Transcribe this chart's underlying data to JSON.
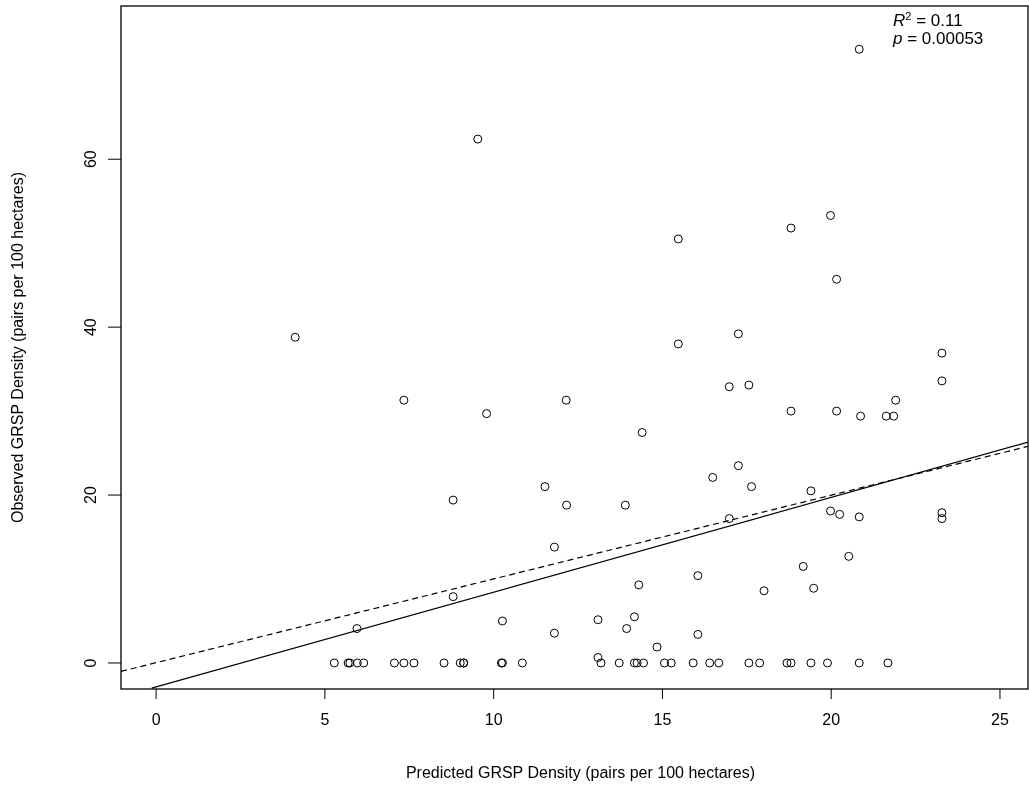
{
  "chart_data": {
    "type": "scatter",
    "xlabel": "Predicted GRSP Density (pairs per 100 hectares)",
    "ylabel": "Observed GRSP Density (pairs per 100 hectares)",
    "xlim": [
      -1.04,
      25.83
    ],
    "ylim": [
      -3.1,
      78.25
    ],
    "xticks": [
      0,
      5,
      10,
      15,
      20,
      25
    ],
    "yticks": [
      0,
      20,
      40,
      60
    ],
    "grid": false,
    "annotations": [
      "R$^{2}$ = 0.11",
      "p = 0.00053"
    ],
    "series": [
      {
        "marker": "circle",
        "color": "#000000",
        "x": [
          9.53,
          4.12,
          7.34,
          9.79,
          20.83,
          15.47,
          18.81,
          19.98,
          20.16,
          17.25,
          15.47,
          23.28,
          16.98,
          17.56,
          23.28,
          12.15,
          18.81,
          20.16,
          20.87,
          21.63,
          21.85,
          21.91,
          14.4,
          11.52,
          12.16,
          13.9,
          16.49,
          17.25,
          17.64,
          19.4,
          19.98,
          20.25,
          20.83,
          23.28,
          23.28,
          16.98,
          11.8,
          20.52,
          19.17,
          16.05,
          14.3,
          19.48,
          18.01,
          10.26,
          13.09,
          14.17,
          13.94,
          11.8,
          16.05,
          14.84,
          13.09,
          8.8,
          8.8,
          5.95,
          10.23,
          10.26,
          10.85,
          13.18,
          13.72,
          14.17,
          14.25,
          14.44,
          15.06,
          15.26,
          15.91,
          16.4,
          16.67,
          17.56,
          17.88,
          18.69,
          18.81,
          19.4,
          19.89,
          20.83,
          21.68,
          5.28,
          5.69,
          5.74,
          5.96,
          6.15,
          7.06,
          7.34,
          7.64,
          8.53,
          9.01,
          9.11,
          9.11
        ],
        "values": [
          62.4,
          38.8,
          31.3,
          29.7,
          73.1,
          50.5,
          51.8,
          53.3,
          45.7,
          39.2,
          38.0,
          36.9,
          32.9,
          33.1,
          33.6,
          31.3,
          30.0,
          30.0,
          29.4,
          29.4,
          29.4,
          31.3,
          27.45,
          21.0,
          18.8,
          18.8,
          22.1,
          23.5,
          21.0,
          20.5,
          18.1,
          17.7,
          17.4,
          17.9,
          17.2,
          17.2,
          13.8,
          12.7,
          11.5,
          10.4,
          9.3,
          8.9,
          8.6,
          5.0,
          5.15,
          5.5,
          4.1,
          3.55,
          3.4,
          1.9,
          0.65,
          19.4,
          7.9,
          4.1,
          0,
          0,
          0,
          0,
          0,
          0,
          0,
          0,
          0,
          0,
          0,
          0,
          0,
          0,
          0,
          0,
          0,
          0,
          0,
          0,
          0,
          0,
          0,
          0,
          0,
          0,
          0,
          0,
          0,
          0,
          0,
          0,
          0
        ]
      },
      {
        "type": "line",
        "color": "#000000",
        "line_style": "solid",
        "x": [
          -0.13,
          25.83
        ],
        "values": [
          -3.0,
          26.3
        ]
      },
      {
        "type": "line",
        "color": "#000000",
        "line_style": "dashed",
        "x": [
          -1.04,
          25.83
        ],
        "values": [
          -1.0,
          25.8
        ]
      }
    ]
  }
}
